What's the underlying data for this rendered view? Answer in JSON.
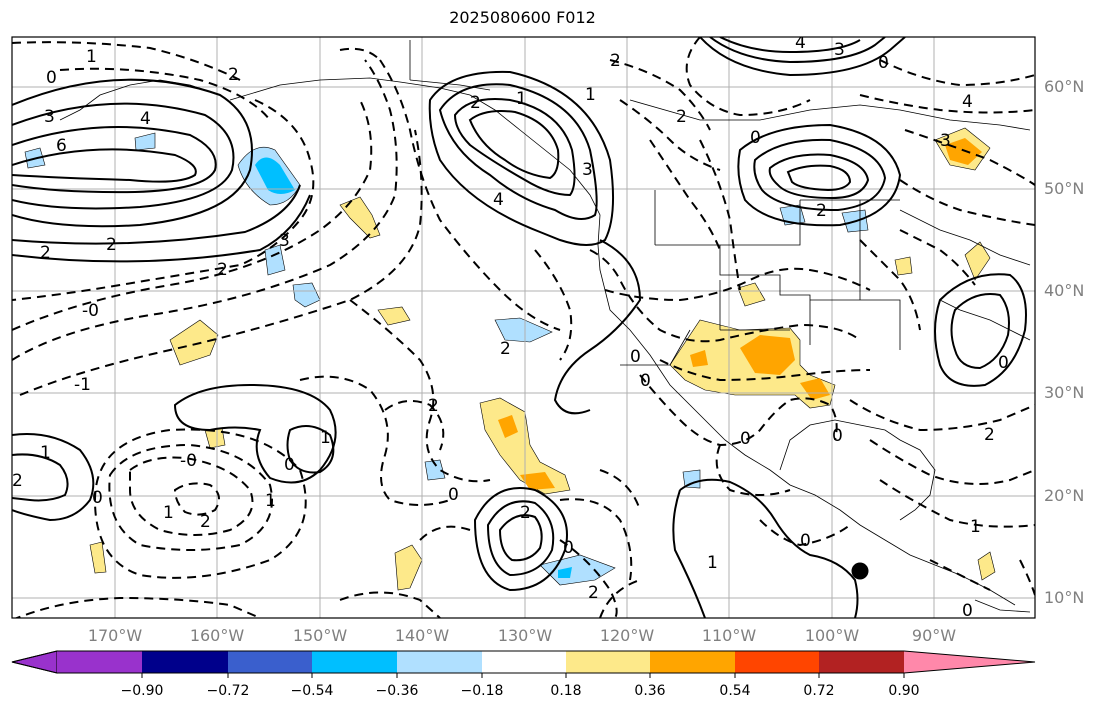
{
  "title": "2025080600 F012",
  "lat_labels": [
    "60°N",
    "50°N",
    "40°N",
    "30°N",
    "20°N",
    "10°N"
  ],
  "lon_labels": [
    "170°W",
    "160°W",
    "150°W",
    "140°W",
    "130°W",
    "120°W",
    "110°W",
    "100°W",
    "90°W"
  ],
  "colorbar": {
    "ticks": [
      "−0.90",
      "−0.72",
      "−0.54",
      "−0.36",
      "−0.18",
      "0.18",
      "0.36",
      "0.54",
      "0.72",
      "0.90"
    ],
    "colors": [
      "#9932cc",
      "#00008b",
      "#3a5fcd",
      "#00bfff",
      "#b0e0ff",
      "#ffffff",
      "#fde98a",
      "#ffa500",
      "#ff4500",
      "#b22222",
      "#ff88aa"
    ]
  },
  "contour_labels": [
    "1",
    "2",
    "0",
    "3",
    "4",
    "6",
    "2",
    "2",
    "4",
    "3",
    "4",
    "3",
    "0",
    "2",
    "1",
    "0",
    "2",
    "-1",
    "-0",
    "1",
    "2",
    "0",
    "1",
    "2",
    "-0",
    "1",
    "3",
    "0",
    "2",
    "0",
    "2",
    "1",
    "0",
    "0",
    "1",
    "2",
    "3",
    "4",
    "2",
    "0",
    "2",
    "0",
    "2",
    "0",
    "2",
    "1",
    "0",
    "1",
    "0",
    "2",
    "0"
  ],
  "markers": [
    "black-dot"
  ]
}
